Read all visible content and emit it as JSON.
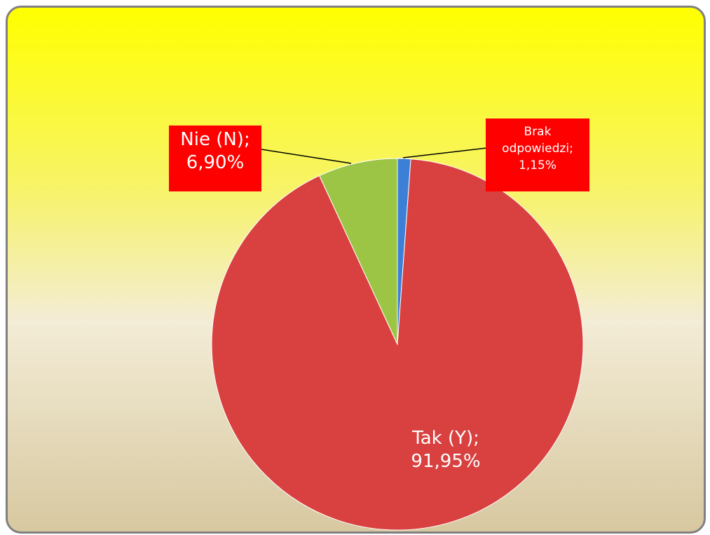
{
  "chart_data": {
    "type": "pie",
    "categories": [
      "Brak odpowiedzi",
      "Tak (Y)",
      "Nie (N)"
    ],
    "values": [
      1.15,
      91.95,
      6.9
    ],
    "value_labels": [
      "Brak\nodpowiedzi;\n1,15%",
      "Tak (Y);\n91,95%",
      "Nie (N);\n6,90%"
    ],
    "colors": [
      "#3c7fd6",
      "#d8413f",
      "#9cc545"
    ]
  }
}
